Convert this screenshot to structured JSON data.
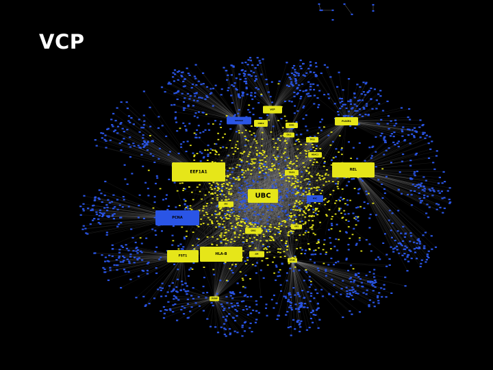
{
  "slide": {
    "title": "VCP"
  },
  "network": {
    "background_color": "#000000",
    "edge_color": "#9a9a9a",
    "node_colors": {
      "blue": "#2a55e6",
      "yellow": "#e6e619"
    },
    "center_hub": "UBC",
    "hubs": [
      {
        "label": "UBC",
        "color": "yellow",
        "size": "xl"
      },
      {
        "label": "EEF1A1",
        "color": "yellow",
        "size": "large"
      },
      {
        "label": "REL",
        "color": "yellow",
        "size": "large"
      },
      {
        "label": "PCNA",
        "color": "blue",
        "size": "large"
      },
      {
        "label": "HLA-B",
        "color": "yellow",
        "size": "large"
      },
      {
        "label": "FST1",
        "color": "yellow",
        "size": "medium"
      },
      {
        "label": "PLSCR1",
        "color": "yellow",
        "size": "small"
      },
      {
        "label": "VCP",
        "color": "yellow",
        "size": "small"
      },
      {
        "label": "CDK2",
        "color": "yellow",
        "size": "small"
      },
      {
        "label": "SMAD2",
        "color": "blue",
        "size": "small"
      },
      {
        "label": "TP53",
        "color": "yellow",
        "size": "small"
      },
      {
        "label": "HDAC1",
        "color": "yellow",
        "size": "small"
      },
      {
        "label": "MYC",
        "color": "blue",
        "size": "small"
      },
      {
        "label": "ESR1",
        "color": "yellow",
        "size": "small"
      },
      {
        "label": "CUL1",
        "color": "yellow",
        "size": "small"
      },
      {
        "label": "TRAF6",
        "color": "yellow",
        "size": "small"
      },
      {
        "label": "SRC",
        "color": "yellow",
        "size": "small"
      },
      {
        "label": "GRB2",
        "color": "yellow",
        "size": "small"
      },
      {
        "label": "JUN",
        "color": "yellow",
        "size": "small"
      },
      {
        "label": "ATF2",
        "color": "yellow",
        "size": "small"
      },
      {
        "label": "CREBBP",
        "color": "yellow",
        "size": "small"
      },
      {
        "label": "EP300",
        "color": "yellow",
        "size": "small"
      }
    ]
  }
}
